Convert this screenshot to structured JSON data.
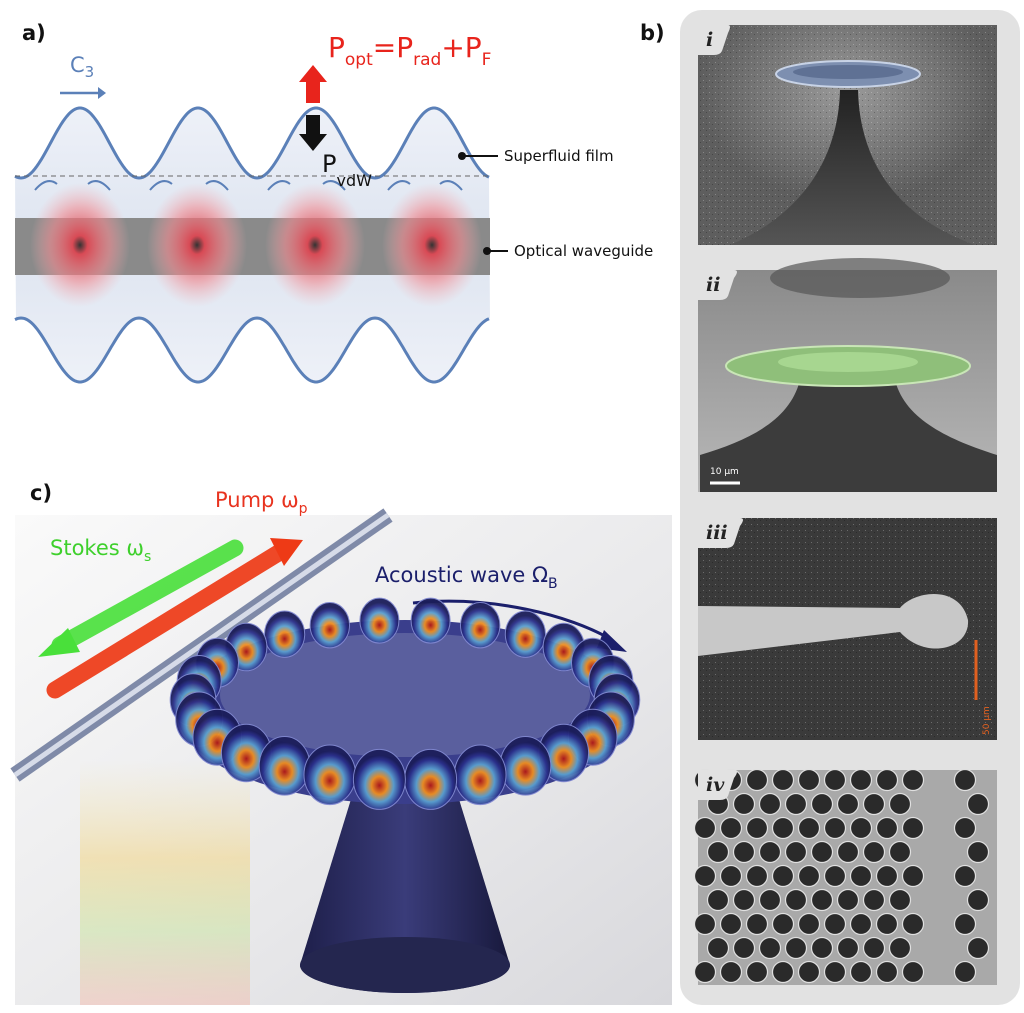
{
  "panel_a": {
    "label": "a)",
    "rotation_label": [
      {
        "text": "C"
      },
      {
        "sub": "3"
      }
    ],
    "force_equation": [
      {
        "text": "P"
      },
      {
        "sub": "opt"
      },
      {
        "text": "=P"
      },
      {
        "sub": "rad"
      },
      {
        "text": "+P"
      },
      {
        "sub": "F"
      }
    ],
    "vdw_label": [
      {
        "text": "P"
      },
      {
        "sub": "vdW"
      }
    ],
    "film_label": "Superfluid film",
    "waveguide_label": "Optical waveguide"
  },
  "panel_b": {
    "label": "b)",
    "images": [
      {
        "label": "i"
      },
      {
        "label": "ii",
        "scale_bar": "10 µm"
      },
      {
        "label": "iii",
        "scale_bar": "50 µm"
      },
      {
        "label": "iv"
      }
    ]
  },
  "panel_c": {
    "label": "c)",
    "pump": [
      {
        "text": "Pump ω"
      },
      {
        "sub": "p"
      }
    ],
    "stokes": [
      {
        "text": "Stokes ω"
      },
      {
        "sub": "s"
      }
    ],
    "acoustic": [
      {
        "text": "Acoustic wave Ω"
      },
      {
        "sub": "B"
      }
    ]
  }
}
